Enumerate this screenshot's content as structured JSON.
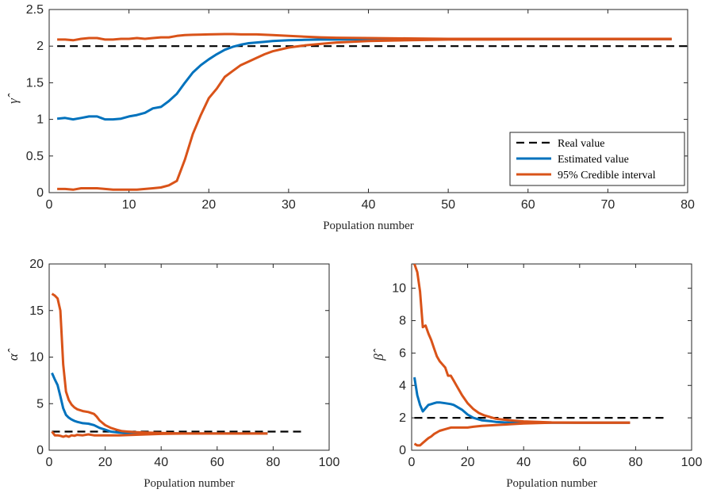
{
  "chart_data": [
    {
      "type": "line",
      "id": "gamma",
      "xlabel": "Population number",
      "ylabel": "γ̂",
      "xlim": [
        0,
        80
      ],
      "ylim": [
        0,
        2.5
      ],
      "xticks": [
        0,
        10,
        20,
        30,
        40,
        50,
        60,
        70,
        80
      ],
      "yticks": [
        0,
        0.5,
        1,
        1.5,
        2,
        2.5
      ],
      "xtick_labels": [
        "0",
        "10",
        "20",
        "30",
        "40",
        "50",
        "60",
        "70",
        "80"
      ],
      "ytick_labels": [
        "0",
        "0.5",
        "1",
        "1.5",
        "2",
        "2.5"
      ],
      "grid": false,
      "legend": {
        "placement": "lower-right",
        "entries": [
          "Real value",
          "Estimated value",
          "95% Credible interval"
        ]
      },
      "series": [
        {
          "name": "Real value",
          "style": "dashed",
          "color": "#000000",
          "x": [
            1,
            80
          ],
          "y": [
            2,
            2
          ]
        },
        {
          "name": "Estimated value",
          "style": "solid",
          "color": "#0072BD",
          "x": [
            1,
            2,
            3,
            4,
            5,
            6,
            7,
            8,
            9,
            10,
            11,
            12,
            13,
            14,
            15,
            16,
            17,
            18,
            19,
            20,
            21,
            22,
            23,
            24,
            25,
            26,
            27,
            28,
            30,
            32,
            34,
            36,
            40,
            45,
            50,
            55,
            60,
            65,
            70,
            75,
            78
          ],
          "y": [
            1.01,
            1.02,
            1.0,
            1.02,
            1.04,
            1.04,
            1.0,
            1.0,
            1.01,
            1.04,
            1.06,
            1.09,
            1.15,
            1.17,
            1.25,
            1.35,
            1.5,
            1.64,
            1.74,
            1.82,
            1.89,
            1.95,
            1.99,
            2.02,
            2.04,
            2.05,
            2.06,
            2.07,
            2.08,
            2.085,
            2.09,
            2.09,
            2.095,
            2.095,
            2.095,
            2.095,
            2.095,
            2.095,
            2.095,
            2.095,
            2.095
          ]
        },
        {
          "name": "95% Credible interval",
          "style": "solid",
          "color": "#D95319",
          "x": [
            1,
            2,
            3,
            4,
            5,
            6,
            7,
            8,
            9,
            10,
            11,
            12,
            13,
            14,
            15,
            16,
            17,
            18,
            19,
            20,
            21,
            22,
            23,
            24,
            25,
            26,
            27,
            28,
            30,
            32,
            34,
            36,
            40,
            45,
            50,
            55,
            60,
            65,
            70,
            75,
            78
          ],
          "y": [
            0.05,
            0.05,
            0.04,
            0.06,
            0.06,
            0.06,
            0.05,
            0.04,
            0.04,
            0.04,
            0.04,
            0.05,
            0.06,
            0.07,
            0.1,
            0.16,
            0.45,
            0.8,
            1.06,
            1.29,
            1.42,
            1.58,
            1.66,
            1.74,
            1.79,
            1.84,
            1.89,
            1.93,
            1.98,
            2.01,
            2.03,
            2.05,
            2.07,
            2.08,
            2.09,
            2.09,
            2.095,
            2.095,
            2.095,
            2.095,
            2.095
          ]
        },
        {
          "name": "",
          "style": "solid",
          "color": "#D95319",
          "x": [
            1,
            2,
            3,
            4,
            5,
            6,
            7,
            8,
            9,
            10,
            11,
            12,
            13,
            14,
            15,
            16,
            17,
            18,
            20,
            22,
            23,
            24,
            26,
            28,
            30,
            32,
            34,
            36,
            40,
            45,
            50,
            55,
            60,
            65,
            70,
            75,
            78
          ],
          "y": [
            2.09,
            2.09,
            2.08,
            2.1,
            2.11,
            2.11,
            2.09,
            2.09,
            2.1,
            2.1,
            2.11,
            2.1,
            2.11,
            2.12,
            2.12,
            2.14,
            2.15,
            2.155,
            2.16,
            2.165,
            2.165,
            2.16,
            2.16,
            2.15,
            2.14,
            2.13,
            2.12,
            2.115,
            2.11,
            2.105,
            2.1,
            2.1,
            2.1,
            2.1,
            2.1,
            2.1,
            2.1
          ]
        }
      ]
    },
    {
      "type": "line",
      "id": "alpha",
      "xlabel": "Population number",
      "ylabel": "α̂",
      "xlim": [
        0,
        100
      ],
      "ylim": [
        0,
        20
      ],
      "xticks": [
        0,
        20,
        40,
        60,
        80,
        100
      ],
      "yticks": [
        0,
        5,
        10,
        15,
        20
      ],
      "xtick_labels": [
        "0",
        "20",
        "40",
        "60",
        "80",
        "100"
      ],
      "ytick_labels": [
        "0",
        "5",
        "10",
        "15",
        "20"
      ],
      "grid": false,
      "series": [
        {
          "name": "Real value",
          "style": "dashed",
          "color": "#000000",
          "x": [
            1,
            90
          ],
          "y": [
            2,
            2
          ]
        },
        {
          "name": "Estimated value",
          "style": "solid",
          "color": "#0072BD",
          "x": [
            1,
            2,
            3,
            4,
            5,
            6,
            7,
            8,
            9,
            10,
            12,
            14,
            16,
            18,
            20,
            22,
            25,
            28,
            30,
            35,
            40,
            45,
            50,
            60,
            70,
            78
          ],
          "y": [
            8.3,
            7.6,
            7.0,
            5.8,
            4.5,
            3.8,
            3.5,
            3.3,
            3.15,
            3.05,
            2.9,
            2.85,
            2.7,
            2.4,
            2.2,
            2.0,
            1.9,
            1.85,
            1.8,
            1.8,
            1.8,
            1.8,
            1.8,
            1.8,
            1.8,
            1.8
          ]
        },
        {
          "name": "95% Credible interval",
          "style": "solid",
          "color": "#D95319",
          "x": [
            1,
            2,
            3,
            4,
            5,
            6,
            7,
            8,
            9,
            10,
            12,
            14,
            16,
            17,
            18,
            20,
            22,
            24,
            26,
            28,
            30,
            35,
            40,
            45,
            50,
            60,
            70,
            78
          ],
          "y": [
            16.8,
            16.6,
            16.3,
            15.0,
            9.2,
            6.3,
            5.4,
            4.9,
            4.6,
            4.4,
            4.2,
            4.1,
            3.9,
            3.6,
            3.2,
            2.7,
            2.4,
            2.2,
            2.05,
            2.0,
            1.95,
            1.9,
            1.85,
            1.82,
            1.8,
            1.8,
            1.8,
            1.8
          ]
        },
        {
          "name": "",
          "style": "solid",
          "color": "#D95319",
          "x": [
            1,
            2,
            3,
            4,
            5,
            6,
            7,
            8,
            9,
            10,
            12,
            14,
            16,
            18,
            20,
            25,
            30,
            40,
            50,
            60,
            70,
            78
          ],
          "y": [
            2.0,
            1.6,
            1.6,
            1.55,
            1.45,
            1.55,
            1.45,
            1.6,
            1.55,
            1.65,
            1.6,
            1.7,
            1.6,
            1.6,
            1.6,
            1.6,
            1.65,
            1.75,
            1.8,
            1.8,
            1.8,
            1.8
          ]
        }
      ]
    },
    {
      "type": "line",
      "id": "beta",
      "xlabel": "Population number",
      "ylabel": "β̂",
      "xlim": [
        0,
        100
      ],
      "ylim": [
        0,
        11.5
      ],
      "xticks": [
        0,
        20,
        40,
        60,
        80,
        100
      ],
      "yticks": [
        0,
        2,
        4,
        6,
        8,
        10
      ],
      "xtick_labels": [
        "0",
        "20",
        "40",
        "60",
        "80",
        "100"
      ],
      "ytick_labels": [
        "0",
        "2",
        "4",
        "6",
        "8",
        "10"
      ],
      "grid": false,
      "series": [
        {
          "name": "Real value",
          "style": "dashed",
          "color": "#000000",
          "x": [
            1,
            90
          ],
          "y": [
            2,
            2
          ]
        },
        {
          "name": "Estimated value",
          "style": "solid",
          "color": "#0072BD",
          "x": [
            1,
            2,
            3,
            4,
            5,
            6,
            7,
            8,
            9,
            10,
            12,
            14,
            15,
            16,
            18,
            20,
            22,
            25,
            28,
            30,
            35,
            40,
            45,
            50,
            60,
            70,
            78
          ],
          "y": [
            4.5,
            3.4,
            2.8,
            2.4,
            2.6,
            2.8,
            2.85,
            2.9,
            2.95,
            2.95,
            2.9,
            2.85,
            2.8,
            2.7,
            2.5,
            2.2,
            2.0,
            1.85,
            1.8,
            1.75,
            1.7,
            1.7,
            1.7,
            1.7,
            1.7,
            1.7,
            1.7
          ]
        },
        {
          "name": "95% Credible interval",
          "style": "solid",
          "color": "#D95319",
          "x": [
            1,
            2,
            3,
            4,
            5,
            6,
            7,
            8,
            9,
            10,
            11,
            12,
            13,
            14,
            15,
            16,
            17,
            18,
            20,
            22,
            24,
            26,
            28,
            30,
            35,
            40,
            45,
            50,
            60,
            70,
            78
          ],
          "y": [
            11.5,
            11.0,
            9.8,
            7.6,
            7.7,
            7.2,
            6.8,
            6.3,
            5.8,
            5.5,
            5.3,
            5.1,
            4.6,
            4.6,
            4.3,
            4.0,
            3.7,
            3.4,
            2.9,
            2.55,
            2.3,
            2.15,
            2.05,
            1.95,
            1.85,
            1.78,
            1.75,
            1.72,
            1.7,
            1.7,
            1.7
          ]
        },
        {
          "name": "",
          "style": "solid",
          "color": "#D95319",
          "x": [
            1,
            2,
            3,
            4,
            5,
            6,
            7,
            8,
            9,
            10,
            12,
            14,
            16,
            18,
            20,
            22,
            25,
            30,
            35,
            40,
            50,
            60,
            70,
            78
          ],
          "y": [
            0.4,
            0.3,
            0.3,
            0.45,
            0.6,
            0.75,
            0.85,
            1.0,
            1.1,
            1.2,
            1.3,
            1.4,
            1.4,
            1.4,
            1.4,
            1.45,
            1.5,
            1.55,
            1.6,
            1.65,
            1.7,
            1.7,
            1.7,
            1.7
          ]
        }
      ]
    }
  ]
}
